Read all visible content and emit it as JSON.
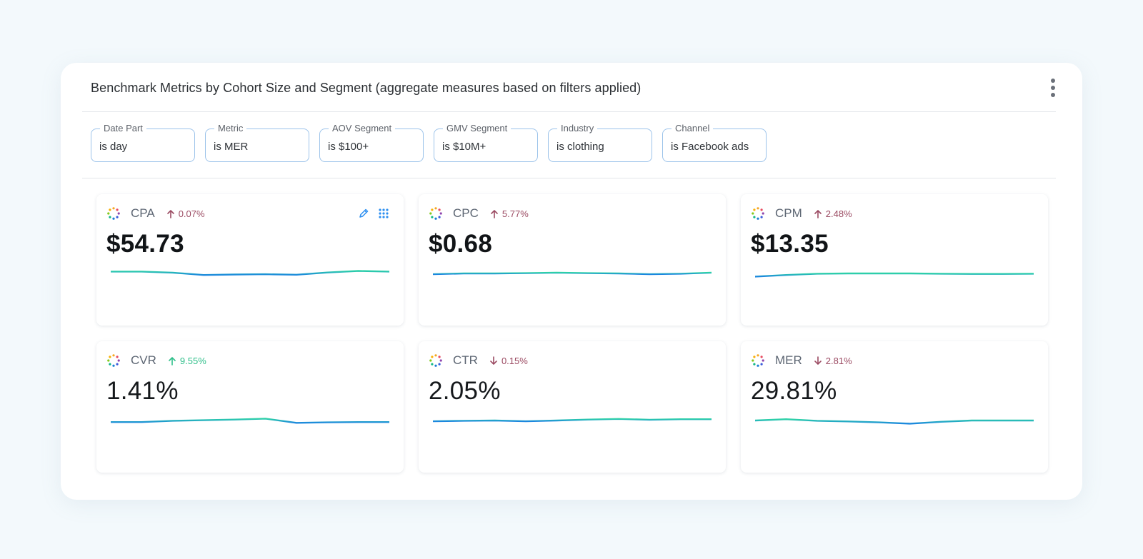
{
  "panel": {
    "title": "Benchmark Metrics by Cohort Size and Segment (aggregate measures based on filters applied)",
    "menu_icon": "more-vertical-icon"
  },
  "filters": [
    {
      "label": "Date Part",
      "value": "is day"
    },
    {
      "label": "Metric",
      "value": "is MER"
    },
    {
      "label": "AOV Segment",
      "value": "is $100+"
    },
    {
      "label": "GMV Segment",
      "value": "is $10M+"
    },
    {
      "label": "Industry",
      "value": "is clothing"
    },
    {
      "label": "Channel",
      "value": "is Facebook ads"
    }
  ],
  "cards": [
    {
      "name": "CPA",
      "delta": "0.07%",
      "direction": "up",
      "value": "$54.73",
      "trend": [
        0.62,
        0.62,
        0.55,
        0.4,
        0.43,
        0.45,
        0.42,
        0.56,
        0.66,
        0.62
      ]
    },
    {
      "name": "CPC",
      "delta": "5.77%",
      "direction": "up",
      "value": "$0.68",
      "trend": [
        0.45,
        0.5,
        0.5,
        0.52,
        0.55,
        0.52,
        0.5,
        0.45,
        0.48,
        0.55
      ]
    },
    {
      "name": "CPM",
      "delta": "2.48%",
      "direction": "up",
      "value": "$13.35",
      "trend": [
        0.3,
        0.4,
        0.48,
        0.5,
        0.5,
        0.5,
        0.48,
        0.47,
        0.47,
        0.48
      ]
    },
    {
      "name": "CVR",
      "delta": "9.55%",
      "direction": "up",
      "value": "1.41%",
      "trend": [
        0.4,
        0.4,
        0.48,
        0.52,
        0.56,
        0.62,
        0.35,
        0.38,
        0.4,
        0.4
      ]
    },
    {
      "name": "CTR",
      "delta": "0.15%",
      "direction": "down",
      "value": "2.05%",
      "trend": [
        0.45,
        0.48,
        0.5,
        0.45,
        0.5,
        0.56,
        0.6,
        0.55,
        0.58,
        0.58
      ]
    },
    {
      "name": "MER",
      "delta": "2.81%",
      "direction": "down",
      "value": "29.81%",
      "trend": [
        0.5,
        0.58,
        0.48,
        0.44,
        0.38,
        0.3,
        0.42,
        0.5,
        0.5,
        0.5
      ]
    }
  ],
  "colors": {
    "accent_start": "#2ed3a6",
    "accent_end": "#1d86e0",
    "delta_negative": "#9b4a62",
    "delta_positive": "#2fbf8a",
    "filter_border": "#9cc3ea"
  },
  "icons": {
    "card_logo": "spinner-dots-icon",
    "edit": "pencil-icon",
    "grid": "grid-dots-icon",
    "up": "arrow-up-icon",
    "down": "arrow-down-icon"
  }
}
